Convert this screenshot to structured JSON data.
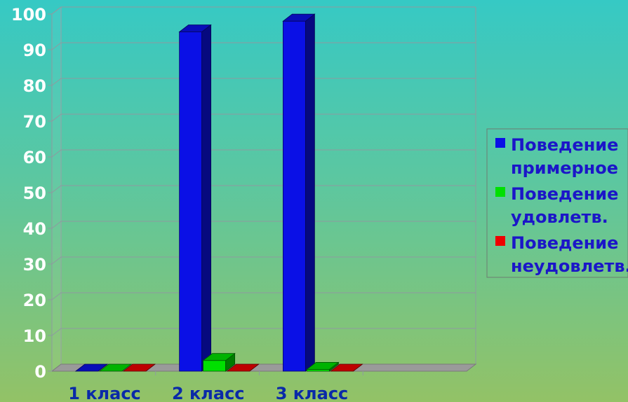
{
  "chart_data": {
    "type": "bar",
    "categories": [
      "1 класс",
      "2 класс",
      "3 класс"
    ],
    "series": [
      {
        "name_lines": [
          "Поведение",
          "примерное"
        ],
        "color": "#0a10e6",
        "values": [
          0,
          95,
          98
        ]
      },
      {
        "name_lines": [
          "Поведение",
          "удовлетв."
        ],
        "color": "#00e000",
        "values": [
          0,
          3,
          0.5
        ]
      },
      {
        "name_lines": [
          "Поведение",
          "неудовлетв."
        ],
        "color": "#ee0000",
        "values": [
          0,
          0,
          0
        ]
      }
    ],
    "yticks": [
      "0",
      "10",
      "20",
      "30",
      "40",
      "50",
      "60",
      "70",
      "80",
      "90",
      "100"
    ],
    "ylim": [
      0,
      100
    ],
    "grid": true,
    "legend_position": "right"
  }
}
